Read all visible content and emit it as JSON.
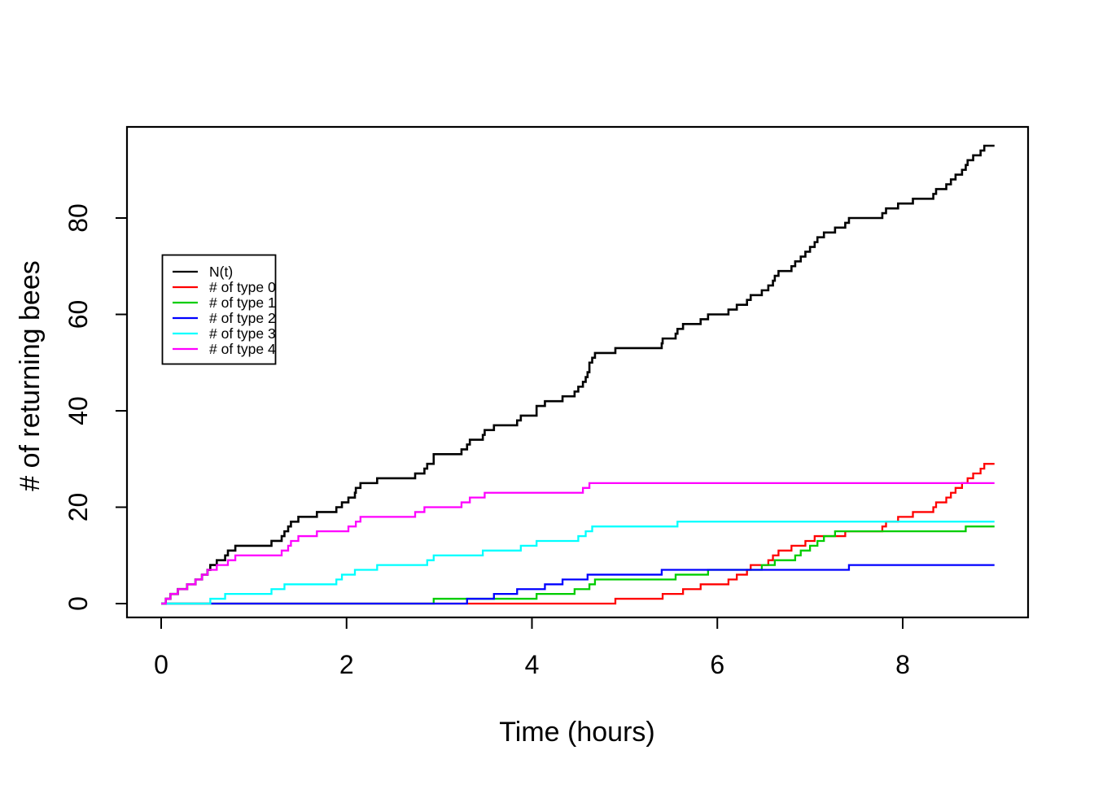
{
  "figure": {
    "background": "#ffffff",
    "axis_color": "#000000",
    "x_axis_title": "Time (hours)",
    "y_axis_title": "# of returning bees"
  },
  "legend": {
    "entries": [
      {
        "label": "N(t)",
        "color": "#000000"
      },
      {
        "label": "# of type 0",
        "color": "#FF0000"
      },
      {
        "label": "# of type 1",
        "color": "#00CD00"
      },
      {
        "label": "# of type 2",
        "color": "#0000FF"
      },
      {
        "label": "# of type 3",
        "color": "#00FFFF"
      },
      {
        "label": "# of type 4",
        "color": "#FF00FF"
      }
    ]
  },
  "chart_data": {
    "type": "line",
    "subtype": "step-counting-process",
    "title": "",
    "xlabel": "Time (hours)",
    "ylabel": "# of returning bees",
    "x_ticks": [
      0,
      2,
      4,
      6,
      8
    ],
    "y_ticks": [
      0,
      20,
      40,
      60,
      80
    ],
    "xlim": [
      -0.37,
      9.35
    ],
    "ylim": [
      -2.9,
      98.9
    ],
    "grid": false,
    "legend_position": "upper-left-inside",
    "t_start": 0,
    "t_end": 8.99,
    "start_value": 0,
    "series": [
      {
        "name": "N(t)",
        "color": "#000000",
        "final_value": 95,
        "jump_times": [
          0.05,
          0.1,
          0.18,
          0.28,
          0.37,
          0.44,
          0.5,
          0.53,
          0.6,
          0.69,
          0.72,
          0.8,
          1.19,
          1.3,
          1.33,
          1.37,
          1.4,
          1.48,
          1.68,
          1.89,
          1.95,
          2.02,
          2.09,
          2.1,
          2.15,
          2.33,
          2.74,
          2.84,
          2.87,
          2.94,
          2.94,
          3.24,
          3.3,
          3.33,
          3.47,
          3.49,
          3.59,
          3.84,
          3.88,
          4.05,
          4.05,
          4.14,
          4.33,
          4.46,
          4.5,
          4.55,
          4.58,
          4.6,
          4.62,
          4.62,
          4.65,
          4.68,
          4.9,
          5.4,
          5.41,
          5.55,
          5.57,
          5.63,
          5.82,
          5.9,
          6.12,
          6.21,
          6.32,
          6.36,
          6.48,
          6.55,
          6.6,
          6.62,
          6.66,
          6.8,
          6.84,
          6.9,
          6.95,
          7.0,
          7.05,
          7.08,
          7.15,
          7.27,
          7.38,
          7.42,
          7.78,
          7.82,
          7.95,
          8.11,
          8.33,
          8.36,
          8.47,
          8.52,
          8.57,
          8.64,
          8.68,
          8.7,
          8.76,
          8.84,
          8.88
        ]
      },
      {
        "name": "# of type 0",
        "color": "#FF0000",
        "final_value": 29,
        "jump_times": [
          4.9,
          5.41,
          5.63,
          5.82,
          6.12,
          6.21,
          6.32,
          6.36,
          6.55,
          6.6,
          6.66,
          6.8,
          6.95,
          7.05,
          7.38,
          7.78,
          7.82,
          7.95,
          8.11,
          8.33,
          8.36,
          8.47,
          8.52,
          8.57,
          8.64,
          8.7,
          8.76,
          8.84,
          8.88
        ]
      },
      {
        "name": "# of type 1",
        "color": "#00CD00",
        "final_value": 16,
        "jump_times": [
          2.94,
          4.05,
          4.46,
          4.62,
          4.68,
          5.55,
          5.9,
          6.48,
          6.62,
          6.84,
          6.9,
          7.0,
          7.08,
          7.15,
          7.27,
          8.68
        ]
      },
      {
        "name": "# of type 2",
        "color": "#0000FF",
        "final_value": 8,
        "jump_times": [
          3.3,
          3.59,
          3.84,
          4.14,
          4.33,
          4.6,
          5.4,
          7.42
        ]
      },
      {
        "name": "# of type 3",
        "color": "#00FFFF",
        "final_value": 17,
        "jump_times": [
          0.53,
          0.69,
          1.19,
          1.33,
          1.89,
          1.95,
          2.09,
          2.33,
          2.87,
          2.94,
          3.47,
          3.88,
          4.05,
          4.5,
          4.58,
          4.65,
          5.57
        ]
      },
      {
        "name": "# of type 4",
        "color": "#FF00FF",
        "final_value": 25,
        "jump_times": [
          0.05,
          0.1,
          0.18,
          0.28,
          0.37,
          0.44,
          0.5,
          0.6,
          0.72,
          0.8,
          1.3,
          1.37,
          1.4,
          1.48,
          1.68,
          2.02,
          2.1,
          2.15,
          2.74,
          2.84,
          3.24,
          3.33,
          3.49,
          4.55,
          4.62
        ]
      }
    ]
  }
}
